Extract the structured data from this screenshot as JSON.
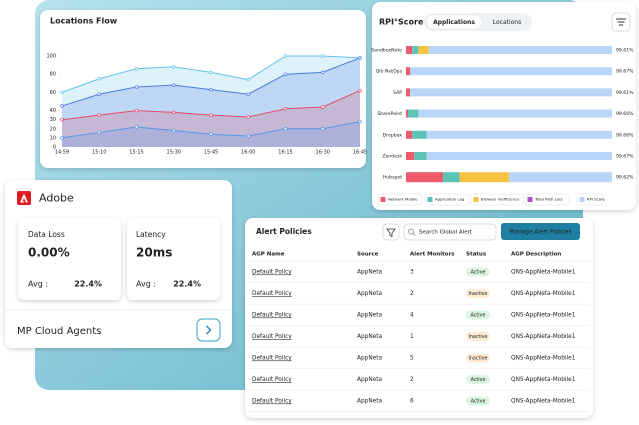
{
  "locations_flow": {
    "type": "line",
    "title": "Locations Flow",
    "categories": [
      "14:59",
      "15:10",
      "15:15",
      "15:30",
      "15:45",
      "16:00",
      "16:15",
      "16:30",
      "16:45"
    ],
    "ylim": [
      0,
      100
    ],
    "yticks": [
      0,
      10,
      20,
      30,
      40,
      60,
      80,
      100
    ],
    "series": [
      {
        "color": "#62c3ea",
        "values": [
          60,
          75,
          86,
          88,
          82,
          74,
          100,
          100,
          98
        ]
      },
      {
        "color": "#4d78de",
        "values": [
          45,
          58,
          66,
          68,
          63,
          58,
          80,
          82,
          98
        ]
      },
      {
        "color": "#e44d67",
        "values": [
          30,
          35,
          40,
          38,
          35,
          33,
          42,
          44,
          62
        ]
      },
      {
        "color": "#5996e6",
        "values": [
          10,
          16,
          22,
          18,
          14,
          12,
          20,
          20,
          28
        ]
      }
    ]
  },
  "rpi": {
    "type": "bar",
    "title": "RPI°Score",
    "tabs": [
      "Applications",
      "Locations"
    ],
    "legend": [
      {
        "name": "Network Mobile",
        "color": "#f05a6e"
      },
      {
        "name": "Application Lag",
        "color": "#5cc4b4"
      },
      {
        "name": "Browser Inefficiency",
        "color": "#f5c242"
      },
      {
        "name": "Total Path Loss",
        "color": "#b44fc8"
      },
      {
        "name": "RPI Score",
        "color": "#b9d5f8"
      }
    ],
    "rows": [
      {
        "name": "SandboxNote",
        "segments": [
          3,
          3,
          5,
          0,
          89
        ],
        "score": "99.61%"
      },
      {
        "name": "Qiti NetOps",
        "segments": [
          2,
          0,
          0,
          0,
          98
        ],
        "score": "99.67%"
      },
      {
        "name": "SAP",
        "segments": [
          2,
          0,
          0,
          0,
          98
        ],
        "score": "99.61%"
      },
      {
        "name": "SharePoint",
        "segments": [
          1,
          5,
          0,
          0,
          94
        ],
        "score": "99.66%"
      },
      {
        "name": "Dropbox",
        "segments": [
          3,
          7,
          0,
          0,
          90
        ],
        "score": "99.66%"
      },
      {
        "name": "Zendesk",
        "segments": [
          4,
          6,
          0,
          0,
          90
        ],
        "score": "99.67%"
      },
      {
        "name": "Hubspot",
        "segments": [
          18,
          8,
          24,
          0,
          50
        ],
        "score": "99.62%"
      }
    ]
  },
  "adobe": {
    "name": "Adobe",
    "footer": "MP Cloud Agents",
    "metrics": [
      {
        "label": "Data Loss",
        "value": "0.00%",
        "avg_label": "Avg :",
        "avg": "22.4%"
      },
      {
        "label": "Latency",
        "value": "20ms",
        "avg_label": "Avg :",
        "avg": "22.4%"
      }
    ]
  },
  "alerts": {
    "title": "Alert Policies",
    "search_placeholder": "Search Global Alert",
    "button": "Manage Alert Policies",
    "columns": [
      "AGP Name",
      "Source",
      "Alert Monitors",
      "Status",
      "AGP Description"
    ],
    "status_colors": {
      "Active": [
        "#dcf5e1",
        "#2e9d4a"
      ],
      "Inactive": [
        "#fdecd3",
        "#c98a2a"
      ]
    },
    "rows": [
      [
        "Default Policy",
        "AppNeta",
        3,
        "Active",
        "QNS-AppNeta-Mobile1"
      ],
      [
        "Default Policy",
        "AppNeta",
        2,
        "Inactive",
        "QNS-AppNeta-Mobile1"
      ],
      [
        "Default Policy",
        "AppNeta",
        4,
        "Active",
        "QNS-AppNeta-Mobile1"
      ],
      [
        "Default Policy",
        "AppNeta",
        1,
        "Inactive",
        "QNS-AppNeta-Mobile1"
      ],
      [
        "Default Policy",
        "AppNeta",
        5,
        "Inactive",
        "QNS-AppNeta-Mobile1"
      ],
      [
        "Default Policy",
        "AppNeta",
        2,
        "Active",
        "QNS-AppNeta-Mobile1"
      ],
      [
        "Default Policy",
        "AppNeta",
        6,
        "Active",
        "QNS-AppNeta-Mobile1"
      ]
    ]
  }
}
